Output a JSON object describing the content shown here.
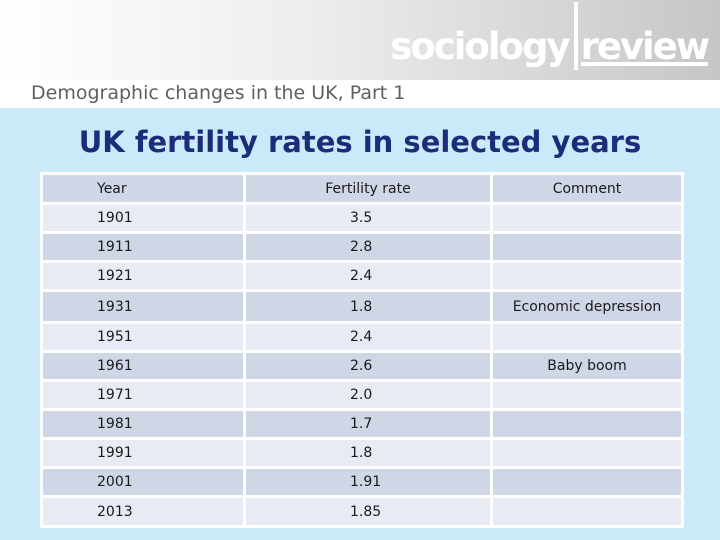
{
  "header": {
    "logo_left": "sociology",
    "logo_right": "review",
    "subtitle": "Demographic changes in the UK, Part 1"
  },
  "title": "UK fertility rates in selected years",
  "table": {
    "headers": [
      "Year",
      "Fertility rate",
      "Comment"
    ],
    "rows": [
      {
        "year": "1901",
        "rate": "3.5",
        "comment": ""
      },
      {
        "year": "1911",
        "rate": "2.8",
        "comment": ""
      },
      {
        "year": "1921",
        "rate": "2.4",
        "comment": ""
      },
      {
        "year": "1931",
        "rate": "1.8",
        "comment": "Economic depression"
      },
      {
        "year": "1951",
        "rate": "2.4",
        "comment": ""
      },
      {
        "year": "1961",
        "rate": "2.6",
        "comment": "Baby boom"
      },
      {
        "year": "1971",
        "rate": "2.0",
        "comment": ""
      },
      {
        "year": "1981",
        "rate": "1.7",
        "comment": ""
      },
      {
        "year": "1991",
        "rate": "1.8",
        "comment": ""
      },
      {
        "year": "2001",
        "rate": "1.91",
        "comment": ""
      },
      {
        "year": "2013",
        "rate": "1.85",
        "comment": ""
      }
    ]
  },
  "colors": {
    "background": "#cce9f9",
    "title": "#1b2c78",
    "row_dark": "#cfd7e7",
    "row_light": "#e8ebf3"
  }
}
